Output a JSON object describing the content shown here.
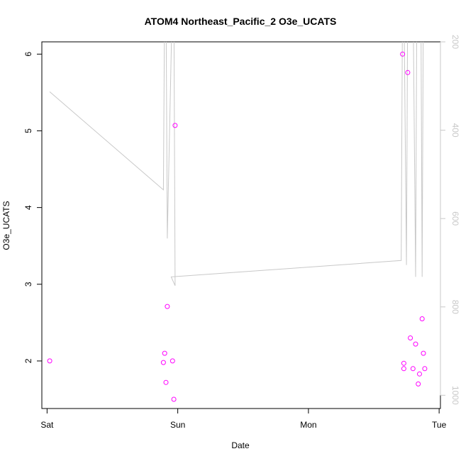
{
  "chart_data": {
    "type": "scatter",
    "title": "ATOM4 Northeast_Pacific_2 O3e_UCATS",
    "xlabel": "Date",
    "ylabel": "O3e_UCATS",
    "x_tick_labels": [
      "Sat",
      "Sun",
      "Mon",
      "Tue"
    ],
    "x_ticks_days": [
      0,
      1,
      2,
      3
    ],
    "xlim_days": [
      -0.04,
      3.01
    ],
    "y_ticks": [
      2,
      3,
      4,
      5,
      6
    ],
    "ylim": [
      1.38,
      6.16
    ],
    "y2_ticks": [
      200,
      400,
      600,
      800,
      1000
    ],
    "y2lim_reversed": [
      1030,
      200
    ],
    "grid": false,
    "series": [
      {
        "kind": "points",
        "color": "#ff00ff",
        "x_days": [
          0.02,
          0.89,
          0.9,
          0.91,
          0.92,
          0.96,
          0.97,
          0.98,
          2.72,
          2.73,
          2.73,
          2.76,
          2.78,
          2.8,
          2.82,
          2.84,
          2.85,
          2.87,
          2.88,
          2.89
        ],
        "y": [
          2.0,
          1.98,
          2.1,
          1.72,
          2.71,
          2.0,
          1.5,
          5.07,
          6.0,
          1.97,
          1.9,
          5.76,
          2.3,
          1.9,
          2.22,
          1.7,
          1.83,
          2.55,
          2.1,
          1.9
        ]
      },
      {
        "kind": "line",
        "axis": "right",
        "color": "#c8c8c8",
        "x_days": [
          0.02,
          0.89,
          0.9,
          0.91,
          0.92,
          0.96,
          0.97,
          0.98,
          0.95,
          2.71,
          2.72,
          2.73,
          2.75,
          2.76,
          2.78,
          2.79,
          2.8,
          2.82,
          2.83,
          2.84,
          2.86,
          2.87,
          2.88
        ],
        "y": [
          313,
          535,
          80,
          80,
          645,
          80,
          80,
          752,
          732,
          695,
          80,
          80,
          705,
          80,
          80,
          80,
          80,
          732,
          80,
          80,
          80,
          732,
          80
        ]
      }
    ]
  }
}
